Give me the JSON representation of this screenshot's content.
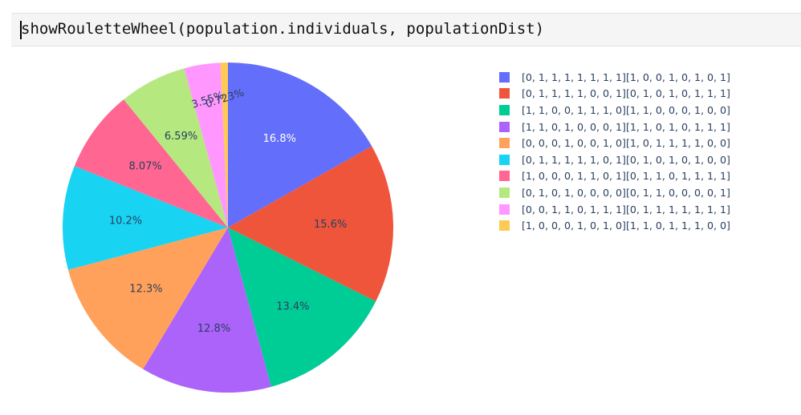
{
  "notebook": {
    "code": "showRouletteWheel(population.individuals, populationDist)"
  },
  "chart_data": {
    "type": "pie",
    "title": "",
    "sort": "descending",
    "direction": "clockwise",
    "start_angle_deg": 90,
    "legend_position": "right",
    "slices": [
      {
        "label": "[0, 1, 1, 1, 1, 1, 1, 1][1, 0, 0, 1, 0, 1, 0, 1]",
        "value": 16.8,
        "text": "16.8%",
        "color": "#636efa",
        "text_color": "#ffffff"
      },
      {
        "label": "[0, 1, 1, 1, 1, 0, 0, 1][0, 1, 0, 1, 0, 1, 1, 1]",
        "value": 15.6,
        "text": "15.6%",
        "color": "#ef553b",
        "text_color": "#2a3f5f"
      },
      {
        "label": "[1, 1, 0, 0, 1, 1, 1, 0][1, 1, 0, 0, 0, 1, 0, 0]",
        "value": 13.4,
        "text": "13.4%",
        "color": "#00cc96",
        "text_color": "#2a3f5f"
      },
      {
        "label": "[1, 1, 0, 1, 0, 0, 0, 1][1, 1, 0, 1, 0, 1, 1, 1]",
        "value": 12.8,
        "text": "12.8%",
        "color": "#ab63fa",
        "text_color": "#2a3f5f"
      },
      {
        "label": "[0, 0, 0, 1, 0, 0, 1, 0][1, 0, 1, 1, 1, 1, 0, 0]",
        "value": 12.3,
        "text": "12.3%",
        "color": "#ffa15a",
        "text_color": "#2a3f5f"
      },
      {
        "label": "[0, 1, 1, 1, 1, 1, 0, 1][0, 1, 0, 1, 0, 1, 0, 0]",
        "value": 10.2,
        "text": "10.2%",
        "color": "#19d3f3",
        "text_color": "#2a3f5f"
      },
      {
        "label": "[1, 0, 0, 0, 1, 1, 0, 1][0, 1, 1, 0, 1, 1, 1, 1]",
        "value": 8.07,
        "text": "8.07%",
        "color": "#ff6692",
        "text_color": "#2a3f5f"
      },
      {
        "label": "[0, 1, 0, 1, 0, 0, 0, 0][0, 1, 1, 0, 0, 0, 0, 1]",
        "value": 6.59,
        "text": "6.59%",
        "color": "#b6e880",
        "text_color": "#2a3f5f"
      },
      {
        "label": "[0, 0, 1, 1, 0, 1, 1, 1][0, 1, 1, 1, 1, 1, 1, 1]",
        "value": 3.55,
        "text": "3.55%",
        "color": "#ff97ff",
        "text_color": "#2a3f5f"
      },
      {
        "label": "[1, 0, 0, 0, 1, 0, 1, 0][1, 1, 0, 1, 1, 1, 0, 0]",
        "value": 0.723,
        "text": "0.723%",
        "color": "#fecb52",
        "text_color": "#2a3f5f"
      }
    ]
  }
}
